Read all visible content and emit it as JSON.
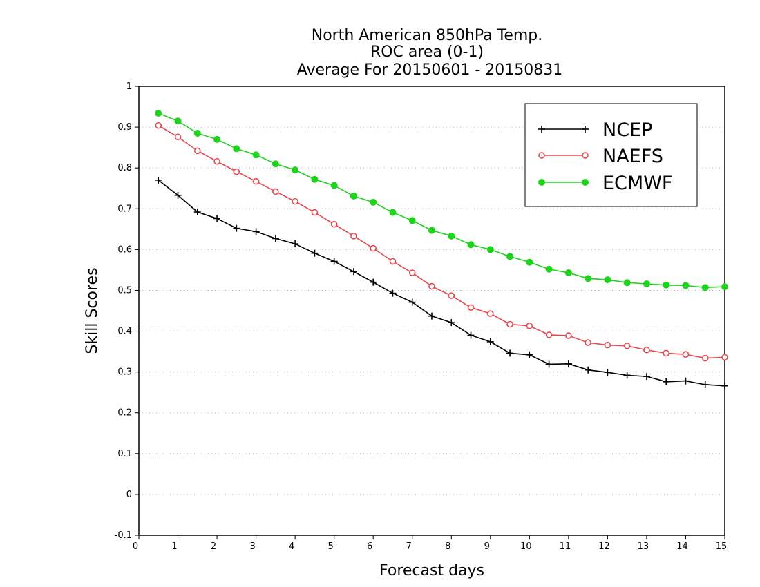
{
  "chart_data": {
    "type": "line",
    "title": [
      "North American 850hPa Temp.",
      "ROC area (0-1)",
      "Average For 20150601 - 20150831"
    ],
    "xlabel": "Forecast days",
    "ylabel": "Skill Scores",
    "xlim": [
      0,
      15
    ],
    "ylim": [
      -0.1,
      1
    ],
    "x_ticks": [
      "0",
      "1",
      "2",
      "3",
      "4",
      "5",
      "6",
      "7",
      "8",
      "9",
      "10",
      "11",
      "12",
      "13",
      "14",
      "15"
    ],
    "y_ticks": [
      "-0.1",
      "0",
      "0.1",
      "0.2",
      "0.3",
      "0.4",
      "0.5",
      "0.6",
      "0.7",
      "0.8",
      "0.9",
      "1"
    ],
    "grid": "dotted horizontal",
    "legend_position": "top-right",
    "x": [
      0.5,
      1,
      1.5,
      2,
      2.5,
      3,
      3.5,
      4,
      4.5,
      5,
      5.5,
      6,
      6.5,
      7,
      7.5,
      8,
      8.5,
      9,
      9.5,
      10,
      10.5,
      11,
      11.5,
      12,
      12.5,
      13,
      13.5,
      14,
      14.5,
      15
    ],
    "series": [
      {
        "name": "NCEP",
        "color": "#000000",
        "marker": "plus",
        "values": [
          0.77,
          0.733,
          0.692,
          0.676,
          0.652,
          0.644,
          0.627,
          0.614,
          0.591,
          0.571,
          0.546,
          0.52,
          0.493,
          0.471,
          0.437,
          0.421,
          0.39,
          0.374,
          0.346,
          0.342,
          0.319,
          0.32,
          0.305,
          0.299,
          0.292,
          0.289,
          0.276,
          0.278,
          0.269,
          0.266
        ]
      },
      {
        "name": "NAEFS",
        "color": "#e8474e",
        "marker": "open-circle",
        "values": [
          0.904,
          0.876,
          0.842,
          0.816,
          0.791,
          0.767,
          0.742,
          0.718,
          0.691,
          0.662,
          0.633,
          0.603,
          0.571,
          0.543,
          0.51,
          0.487,
          0.458,
          0.443,
          0.417,
          0.413,
          0.391,
          0.389,
          0.372,
          0.366,
          0.364,
          0.354,
          0.346,
          0.343,
          0.334,
          0.336
        ]
      },
      {
        "name": "ECMWF",
        "color": "#1ed21e",
        "marker": "filled-circle",
        "values": [
          0.934,
          0.915,
          0.885,
          0.87,
          0.847,
          0.832,
          0.81,
          0.795,
          0.772,
          0.757,
          0.731,
          0.716,
          0.691,
          0.671,
          0.647,
          0.633,
          0.612,
          0.6,
          0.583,
          0.569,
          0.552,
          0.543,
          0.529,
          0.526,
          0.519,
          0.516,
          0.513,
          0.512,
          0.507,
          0.509
        ]
      }
    ]
  }
}
